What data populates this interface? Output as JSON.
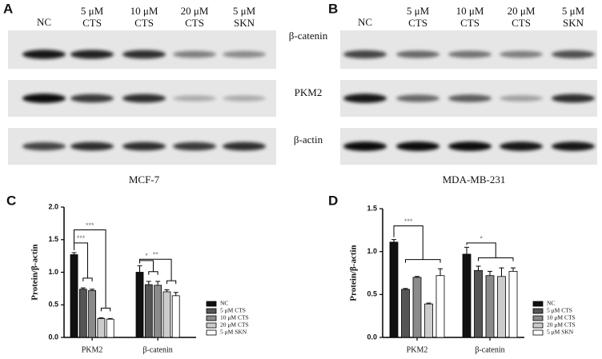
{
  "panel_a": {
    "label": "A",
    "lanes": [
      [
        "NC"
      ],
      [
        "5 μM",
        "CTS"
      ],
      [
        "10 μM",
        "CTS"
      ],
      [
        "20 μM",
        "CTS"
      ],
      [
        "5 μM",
        "SKN"
      ]
    ],
    "caption": "MCF-7"
  },
  "panel_b": {
    "label": "B",
    "lanes": [
      [
        "NC"
      ],
      [
        "5 μM",
        "CTS"
      ],
      [
        "10 μM",
        "CTS"
      ],
      [
        "20 μM",
        "CTS"
      ],
      [
        "5 μM",
        "SKN"
      ]
    ],
    "caption": "MDA-MB-231"
  },
  "blot_rows": [
    "β-catenin",
    "PKM2",
    "β-actin"
  ],
  "chart_data": [
    {
      "type": "bar",
      "panel": "C",
      "ylabel": "Protein/β-actin",
      "categories": [
        "PKM2",
        "β-catenin"
      ],
      "ylim": [
        0,
        2
      ],
      "yticks": [
        {
          "value": 0,
          "label": "0.0"
        },
        0.5,
        {
          "value": 1,
          "label": "1.0"
        },
        1.5,
        {
          "value": 2,
          "label": "2.0"
        }
      ],
      "series": [
        {
          "name": "NC",
          "color": "#111111",
          "values": [
            1.27,
            1.0
          ],
          "errors": [
            0.03,
            0.1
          ]
        },
        {
          "name": "5 μM CTS",
          "color": "#555555",
          "values": [
            0.74,
            0.81
          ],
          "errors": [
            0.02,
            0.05
          ]
        },
        {
          "name": "10 μM CTS",
          "color": "#8a8a8a",
          "values": [
            0.72,
            0.8
          ],
          "errors": [
            0.02,
            0.06
          ]
        },
        {
          "name": "20 μM CTS",
          "color": "#cccccc",
          "values": [
            0.29,
            0.7
          ],
          "errors": [
            0.01,
            0.03
          ]
        },
        {
          "name": "5 μM SKN",
          "color": "#ffffff",
          "values": [
            0.28,
            0.64
          ],
          "errors": [
            0.01,
            0.05
          ]
        }
      ],
      "annotations": [
        "***",
        "***",
        "*",
        "**"
      ]
    },
    {
      "type": "bar",
      "panel": "D",
      "ylabel": "Protein/β-actin",
      "categories": [
        "PKM2",
        "β-catenin"
      ],
      "ylim": [
        0,
        1.5
      ],
      "yticks": [
        {
          "value": 0,
          "label": "0.0"
        },
        0.5,
        {
          "value": 1,
          "label": "1.0"
        },
        1.5
      ],
      "series": [
        {
          "name": "NC",
          "color": "#111111",
          "values": [
            1.11,
            0.97
          ],
          "errors": [
            0.03,
            0.08
          ]
        },
        {
          "name": "5 μM CTS",
          "color": "#555555",
          "values": [
            0.56,
            0.78
          ],
          "errors": [
            0.01,
            0.05
          ]
        },
        {
          "name": "10 μM CTS",
          "color": "#8a8a8a",
          "values": [
            0.7,
            0.72
          ],
          "errors": [
            0.01,
            0.05
          ]
        },
        {
          "name": "20 μM CTS",
          "color": "#cccccc",
          "values": [
            0.39,
            0.71
          ],
          "errors": [
            0.01,
            0.1
          ]
        },
        {
          "name": "5 μM SKN",
          "color": "#ffffff",
          "values": [
            0.72,
            0.77
          ],
          "errors": [
            0.08,
            0.04
          ]
        }
      ],
      "annotations": [
        "***",
        "*"
      ]
    }
  ]
}
